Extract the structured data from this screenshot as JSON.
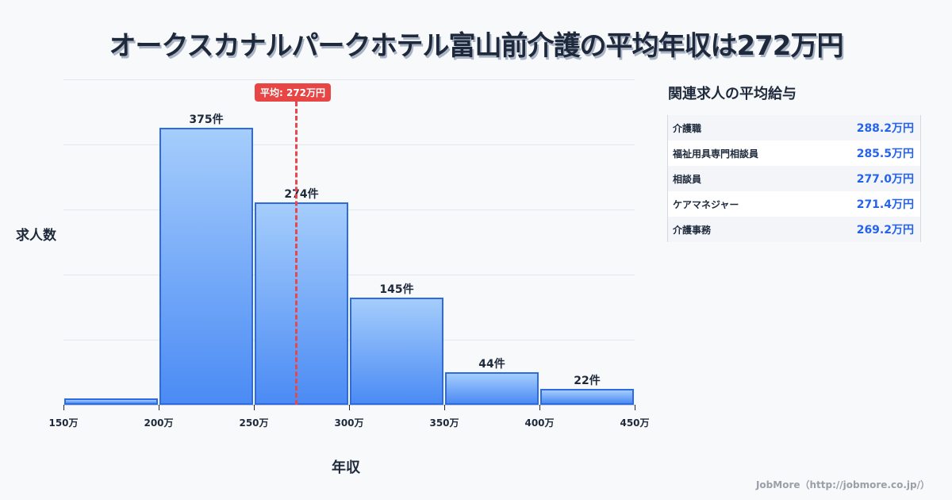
{
  "title": "オークスカナルパークホテル富山前介護の平均年収は272万円",
  "chart_data": {
    "type": "bar",
    "title": "オークスカナルパークホテル富山前介護の平均年収は272万円",
    "xlabel": "年収",
    "ylabel": "求人数",
    "bins": [
      "150-200万",
      "200-250万",
      "250-300万",
      "300-350万",
      "350-400万",
      "400-450万"
    ],
    "x_ticks": [
      "150万",
      "200万",
      "250万",
      "300万",
      "350万",
      "400万",
      "450万"
    ],
    "values": [
      9,
      375,
      274,
      145,
      44,
      22
    ],
    "value_labels": [
      "",
      "375件",
      "274件",
      "145件",
      "44件",
      "22件"
    ],
    "ylim": [
      0,
      440
    ],
    "grid": true,
    "average": {
      "value": 272,
      "label": "平均: 272万円",
      "color": "#e84545"
    },
    "bar_color": "#4b8bf4"
  },
  "side_panel": {
    "title": "関連求人の平均給与",
    "rows": [
      {
        "name": "介護職",
        "value": "288.2万円"
      },
      {
        "name": "福祉用具専門相談員",
        "value": "285.5万円"
      },
      {
        "name": "相談員",
        "value": "277.0万円"
      },
      {
        "name": "ケアマネジャー",
        "value": "271.4万円"
      },
      {
        "name": "介護事務",
        "value": "269.2万円"
      }
    ]
  },
  "footer": "JobMore（http://jobmore.co.jp/）"
}
